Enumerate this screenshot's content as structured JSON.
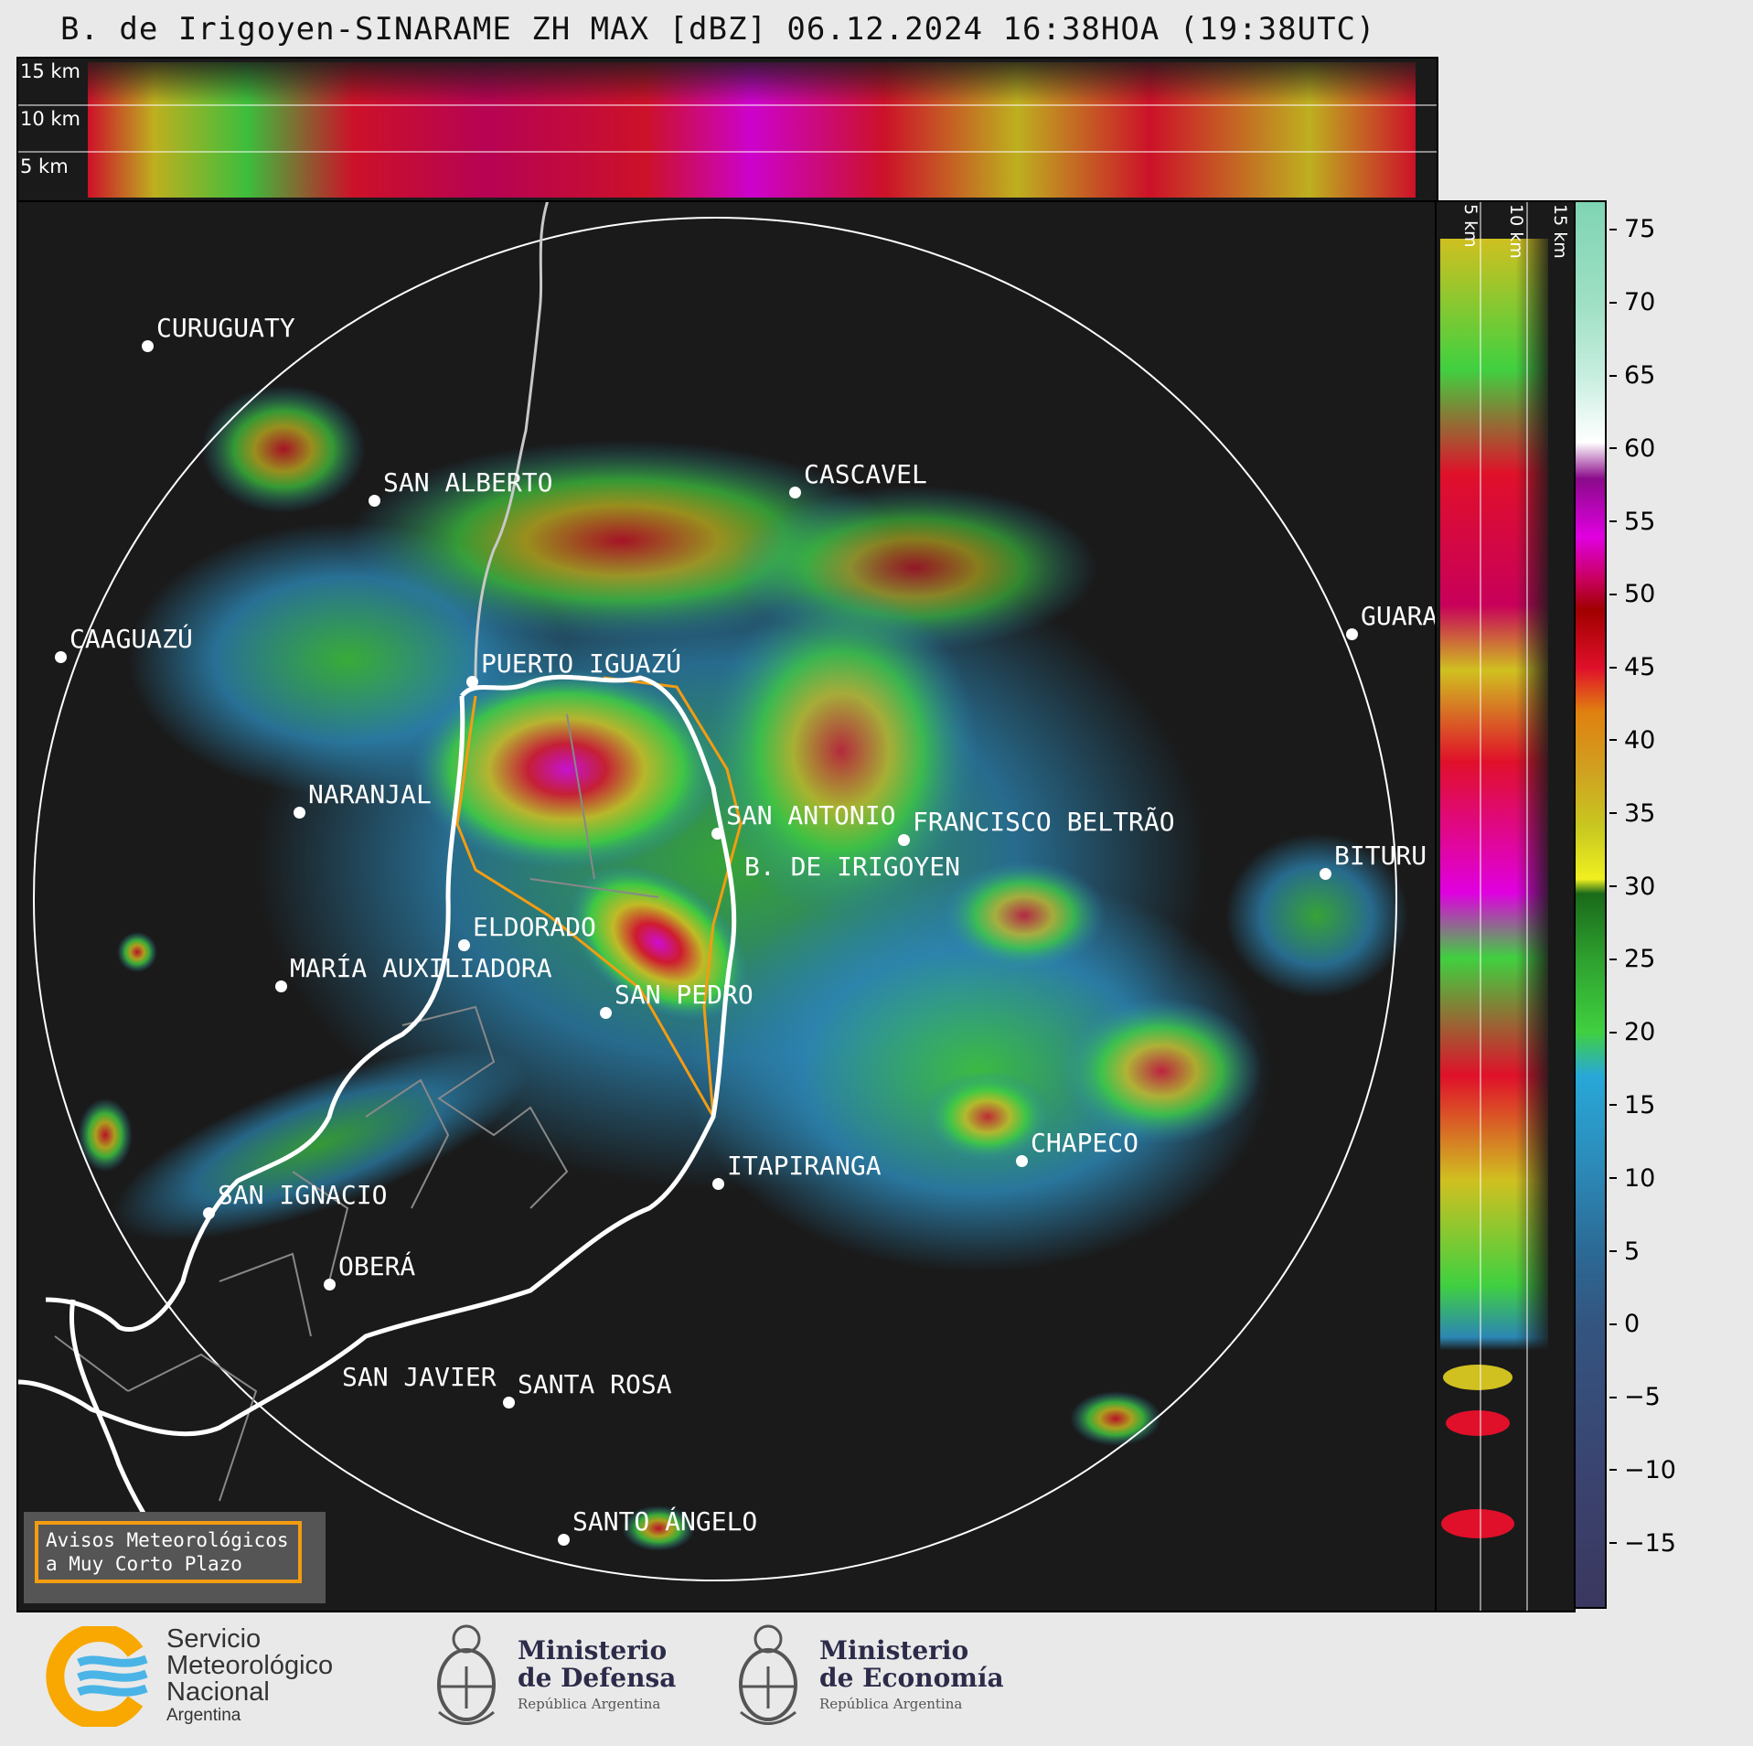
{
  "title": "B. de Irigoyen-SINARAME ZH MAX [dBZ] 06.12.2024 16:38HOA (19:38UTC)",
  "top_panel": {
    "height_labels": [
      "15 km",
      "10 km",
      "5 km"
    ]
  },
  "right_panel": {
    "height_labels": [
      "5 km",
      "10 km",
      "15 km"
    ]
  },
  "cities": [
    {
      "name": "CURUGUATY"
    },
    {
      "name": "SAN ALBERTO"
    },
    {
      "name": "CASCAVEL"
    },
    {
      "name": "CAAGUAZÚ"
    },
    {
      "name": "GUARA"
    },
    {
      "name": "PUERTO IGUAZÚ"
    },
    {
      "name": "NARANJAL"
    },
    {
      "name": "SAN ANTONIO"
    },
    {
      "name": "FRANCISCO BELTRÃO"
    },
    {
      "name": "BITURU"
    },
    {
      "name": "B. DE IRIGOYEN"
    },
    {
      "name": "ELDORADO"
    },
    {
      "name": "MARÍA AUXILIADORA"
    },
    {
      "name": "SAN PEDRO"
    },
    {
      "name": "CHAPECO"
    },
    {
      "name": "ITAPIRANGA"
    },
    {
      "name": "SAN IGNACIO"
    },
    {
      "name": "OBERÁ"
    },
    {
      "name": "SAN JAVIER"
    },
    {
      "name": "SANTA ROSA"
    },
    {
      "name": "SANTO ÁNGELO"
    }
  ],
  "colorbar": {
    "unit": "dBZ",
    "ticks": [
      "75",
      "70",
      "65",
      "60",
      "55",
      "50",
      "45",
      "40",
      "35",
      "30",
      "25",
      "20",
      "15",
      "10",
      "5",
      "0",
      "−5",
      "−10",
      "−15"
    ],
    "stops": [
      {
        "v": 77,
        "c": "#7fd4b4"
      },
      {
        "v": 70,
        "c": "#9fe0c4"
      },
      {
        "v": 65,
        "c": "#c8eee0"
      },
      {
        "v": 60.5,
        "c": "#ffffff"
      },
      {
        "v": 58,
        "c": "#8a0a8a"
      },
      {
        "v": 54,
        "c": "#e000e0"
      },
      {
        "v": 51,
        "c": "#c8005a"
      },
      {
        "v": 49,
        "c": "#a00000"
      },
      {
        "v": 45,
        "c": "#e0102a"
      },
      {
        "v": 42,
        "c": "#e08010"
      },
      {
        "v": 38,
        "c": "#d0a020"
      },
      {
        "v": 34,
        "c": "#c8c820"
      },
      {
        "v": 30.5,
        "c": "#f0f020"
      },
      {
        "v": 29.5,
        "c": "#1a6a1a"
      },
      {
        "v": 25,
        "c": "#2ea02e"
      },
      {
        "v": 20,
        "c": "#40d040"
      },
      {
        "v": 17,
        "c": "#28a8d8"
      },
      {
        "v": 10,
        "c": "#2c86b4"
      },
      {
        "v": 5,
        "c": "#2c6a96"
      },
      {
        "v": 0,
        "c": "#335580"
      },
      {
        "v": -10,
        "c": "#3a4470"
      },
      {
        "v": -19,
        "c": "#3a3860"
      }
    ]
  },
  "avisos": {
    "line1": "Avisos Meteorológicos",
    "line2": "a Muy Corto Plazo"
  },
  "footer": {
    "smn": {
      "l1": "Servicio",
      "l2": "Meteorológico",
      "l3": "Nacional",
      "l4": "Argentina"
    },
    "defensa": {
      "l1": "Ministerio",
      "l2": "de Defensa",
      "l3": "República Argentina"
    },
    "economia": {
      "l1": "Ministerio",
      "l2": "de Economía",
      "l3": "República Argentina"
    }
  },
  "colors": {
    "background": "#1a1a1a",
    "boundary": "#ffffff",
    "province": "#f39c12",
    "river": "#cccccc"
  }
}
